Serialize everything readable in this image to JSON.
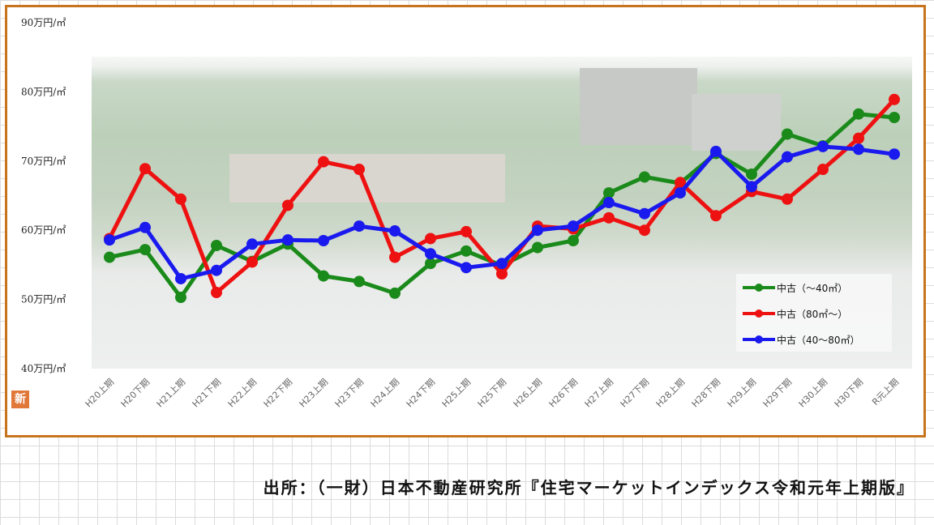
{
  "chart_data": {
    "type": "line",
    "title": "",
    "xlabel": "",
    "ylabel": "",
    "unit_suffix": "万円/㎡",
    "ylim": [
      40,
      90
    ],
    "yticks": [
      40,
      50,
      60,
      70,
      80,
      90
    ],
    "grid": false,
    "legend_position": "bottom-right",
    "categories": [
      "H20上期",
      "H20下期",
      "H21上期",
      "H21下期",
      "H22上期",
      "H22下期",
      "H23上期",
      "H23下期",
      "H24上期",
      "H24下期",
      "H25上期",
      "H25下期",
      "H26上期",
      "H26下期",
      "H27上期",
      "H27下期",
      "H28上期",
      "H28下期",
      "H29上期",
      "H29下期",
      "H30上期",
      "H30下期",
      "R元上期"
    ],
    "series": [
      {
        "name": "中古（～40㎡）",
        "color": "#1a8a1a",
        "values": [
          56.1,
          57.2,
          50.3,
          57.8,
          55.5,
          58.0,
          53.4,
          52.6,
          50.9,
          55.2,
          57.0,
          54.9,
          57.5,
          58.5,
          65.4,
          67.7,
          66.8,
          71.1,
          68.1,
          73.9,
          72.2,
          76.8,
          76.3
        ]
      },
      {
        "name": "中古（80㎡～）",
        "color": "#ee1111",
        "values": [
          58.8,
          68.9,
          64.5,
          51.0,
          55.4,
          63.6,
          69.9,
          68.8,
          56.1,
          58.8,
          59.8,
          53.7,
          60.6,
          60.2,
          61.8,
          60.0,
          66.9,
          62.1,
          65.6,
          64.5,
          68.8,
          73.3,
          78.9
        ]
      },
      {
        "name": "中古（40～80㎡）",
        "color": "#1a1aee",
        "values": [
          58.6,
          60.4,
          53.0,
          54.2,
          58.0,
          58.6,
          58.5,
          60.6,
          59.9,
          56.6,
          54.6,
          55.2,
          60.0,
          60.6,
          64.0,
          62.4,
          65.4,
          71.4,
          66.3,
          70.6,
          72.1,
          71.7,
          71.0
        ]
      }
    ]
  },
  "source": "出所：（一財）日本不動産研究所『住宅マーケットインデックス令和元年上期版』",
  "logo_char": "新"
}
